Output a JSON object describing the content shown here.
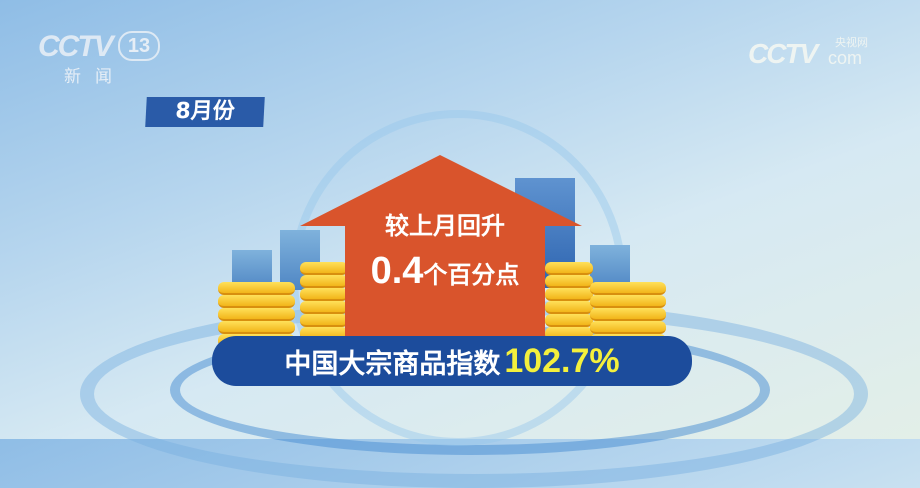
{
  "channel_logo": {
    "brand": "CCTV",
    "number": "13",
    "subtitle": "新闻"
  },
  "watermark": {
    "brand": "CCTV",
    "cn": "央视网",
    "domain": "com"
  },
  "month_tag": "8月份",
  "arrow": {
    "line1": "较上月回升",
    "value": "0.4",
    "unit": "个百分点",
    "color": "#d9542c"
  },
  "index_bar": {
    "label": "中国大宗商品指数",
    "value": "102.7%",
    "bar_color": "#1c4c9c",
    "value_color": "#f4f03c"
  },
  "coin_color": "#f5c42a"
}
